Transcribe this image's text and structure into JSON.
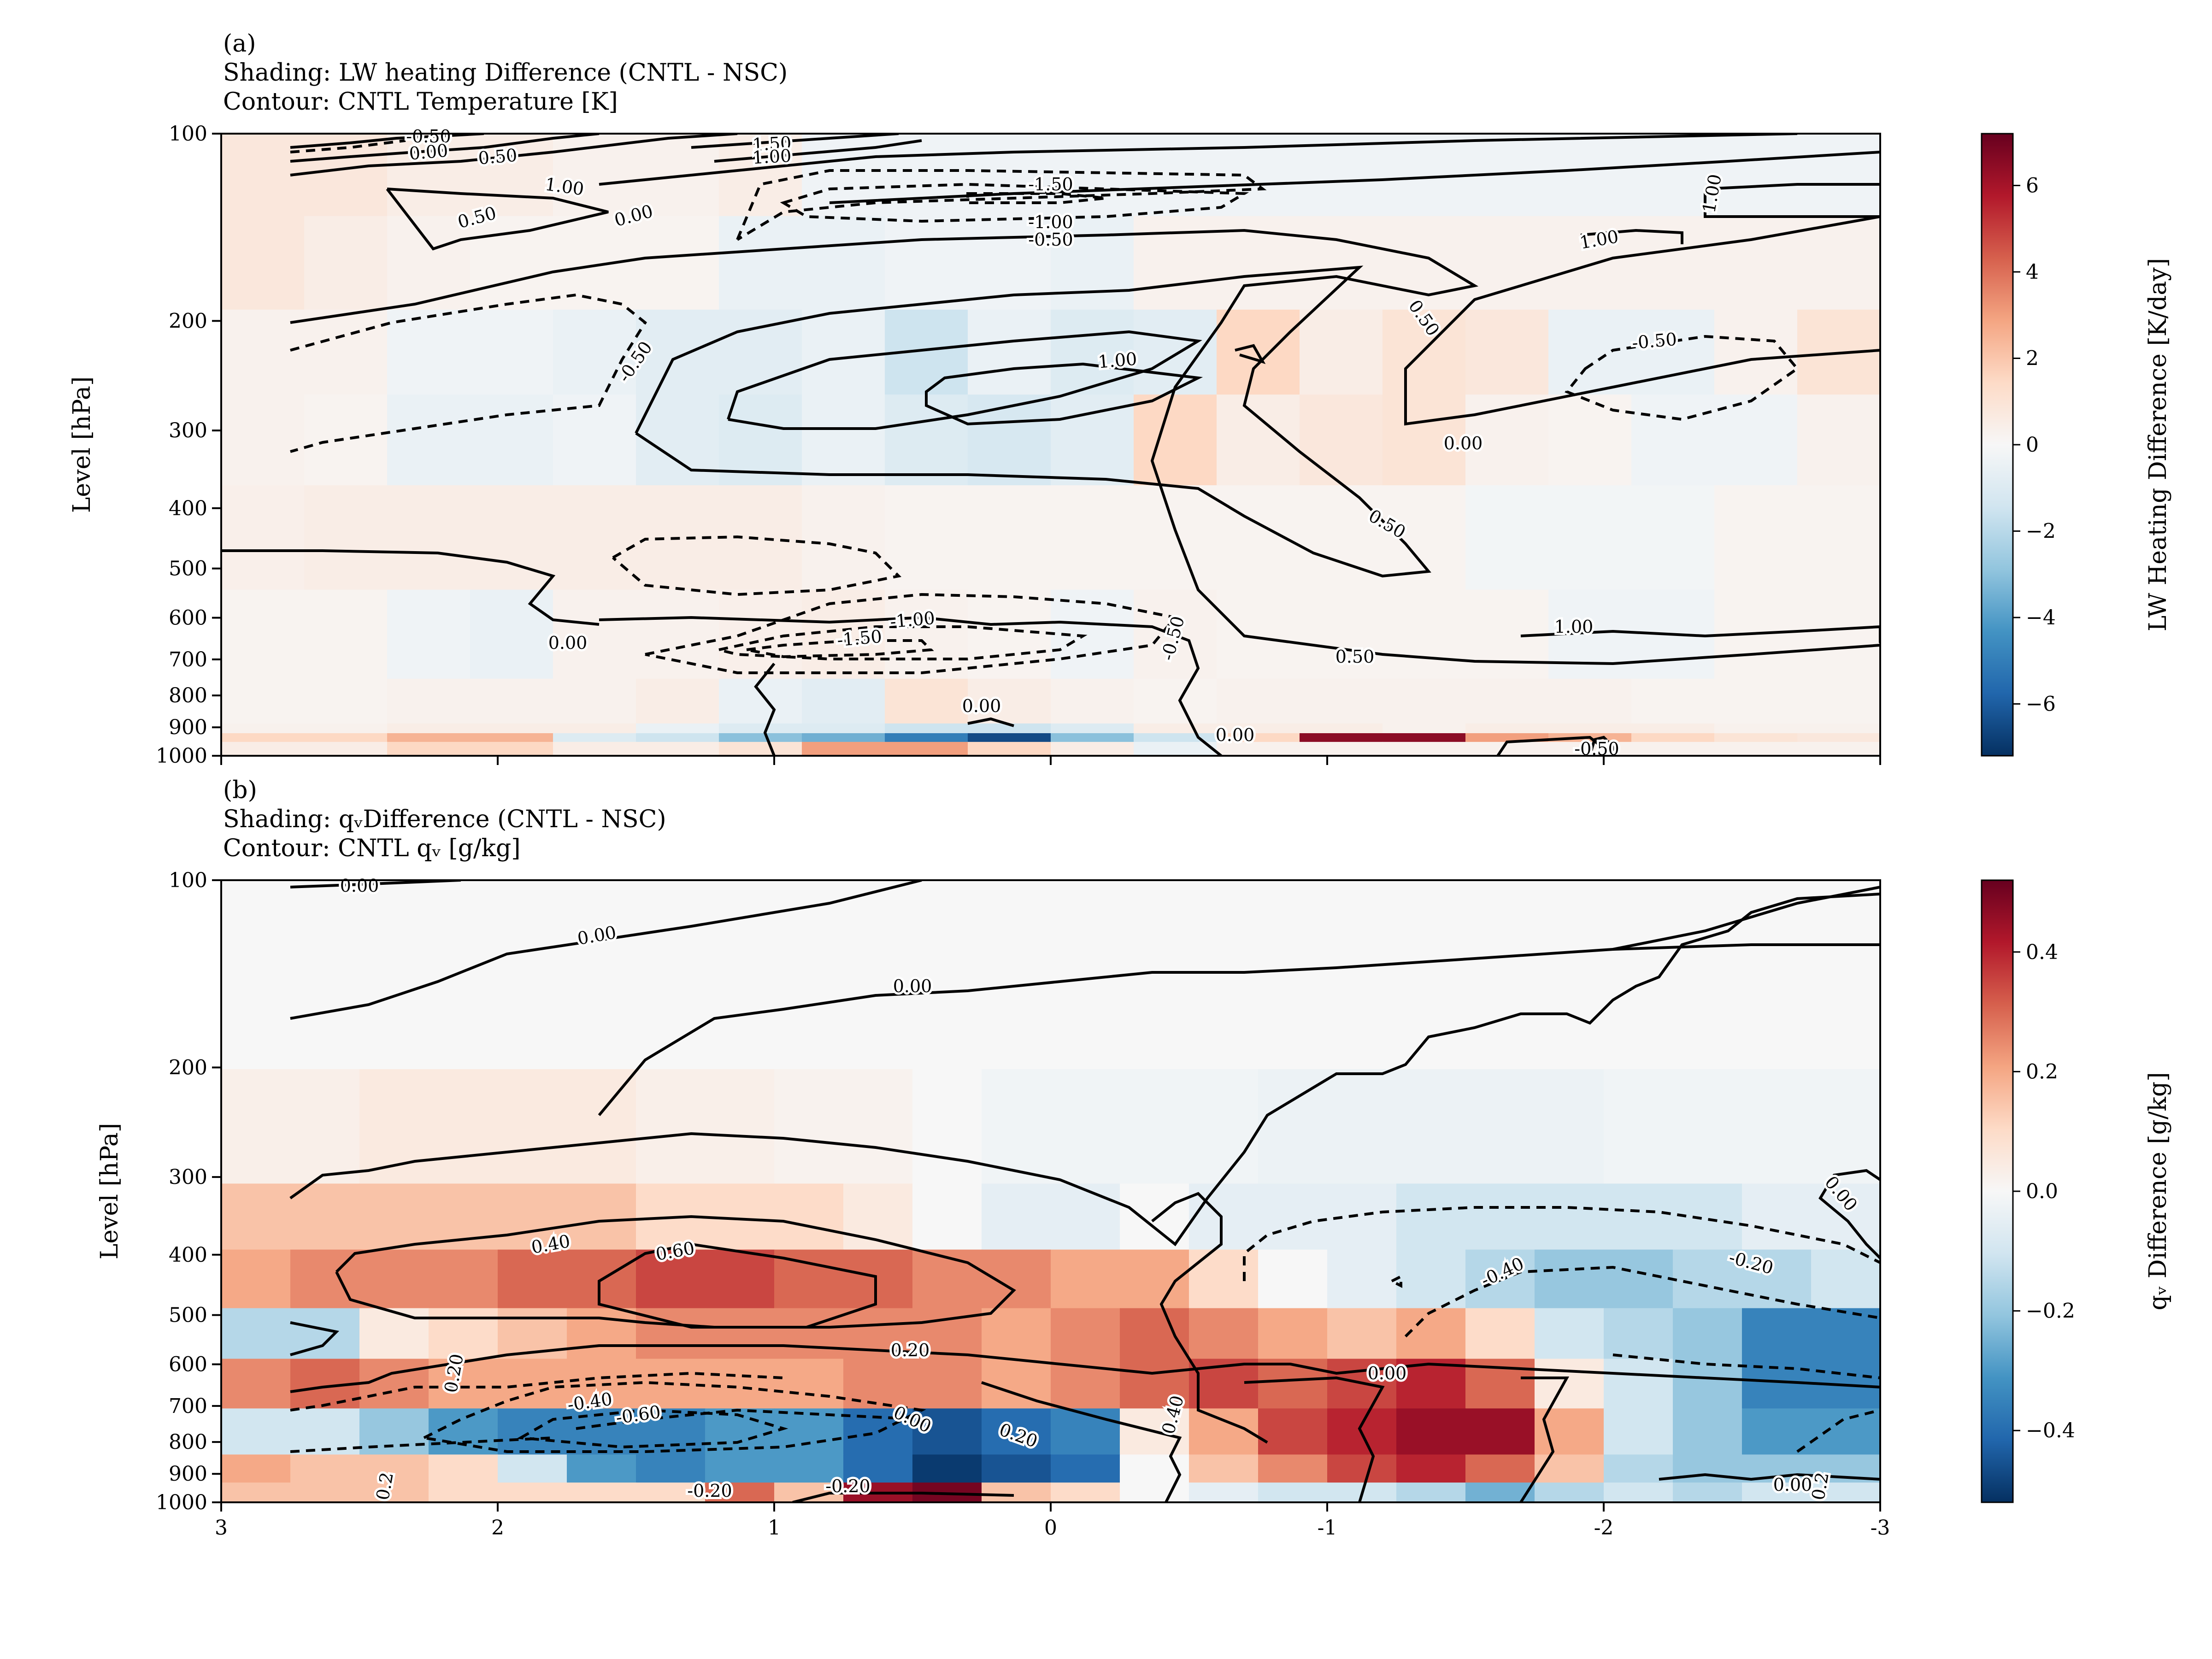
{
  "chart_data": [
    {
      "type": "heatmap",
      "panel_label": "(a)",
      "title_lines": [
        "(a)",
        "Shading: LW heating Difference (CNTL - NSC)",
        "Contour: CNTL Temperature [K]"
      ],
      "ylabel": "Level [hPa]",
      "y_scale": "log",
      "y_reversed": true,
      "ylim": [
        1000,
        100
      ],
      "y_ticks": [
        100,
        200,
        300,
        400,
        500,
        600,
        700,
        800,
        900,
        1000
      ],
      "x_reversed": true,
      "xlim": [
        3,
        -3
      ],
      "x_ticks_labeled": false,
      "colormap": "RdBu_r",
      "colorbar_label": "LW Heating Difference [K/day]",
      "colorbar_range": [
        -7.2,
        7.2
      ],
      "colorbar_ticks": [
        "6",
        "4",
        "2",
        "0",
        "−2",
        "−4",
        "−6"
      ],
      "colorbar_tick_values": [
        6,
        4,
        2,
        0,
        -2,
        -4,
        -6
      ],
      "shading_rows": [
        {
          "p": 935,
          "values": [
            1.5,
            1.5,
            2.5,
            2.5,
            -1.0,
            -1.5,
            -3.0,
            -3.5,
            -5.0,
            -6.5,
            -3.0,
            -1.5,
            1.5,
            6.5,
            6.5,
            3.0,
            2.5,
            1.5,
            1.0,
            0.8
          ]
        },
        {
          "p": 965,
          "values": [
            0.5,
            0.5,
            1.5,
            1.5,
            0.5,
            0.5,
            1.0,
            3.0,
            3.0,
            1.5,
            0.5,
            -0.5,
            0.3,
            0.3,
            0.3,
            0.3,
            0.3,
            0.3,
            0.3,
            0.3
          ]
        },
        {
          "p": 905,
          "values": [
            0.3,
            0.3,
            0.5,
            0.5,
            0.5,
            -0.5,
            -1.0,
            -1.0,
            -1.5,
            -1.5,
            -1.0,
            0.5,
            0.5,
            0.5,
            0.3,
            0.5,
            0.5,
            0.5,
            0.3,
            0.3
          ]
        },
        {
          "p": 870,
          "values": [
            0.2,
            0.2,
            0.3,
            0.3,
            0.3,
            0.5,
            -0.5,
            -0.8,
            1.0,
            0.5,
            0.3,
            0.2,
            0.3,
            0.3,
            0.3,
            0.3,
            0.3,
            0.2,
            0.2,
            0.2
          ]
        },
        {
          "p": 650,
          "values": [
            0.2,
            0.2,
            -0.3,
            -0.5,
            0.3,
            0.3,
            0.4,
            0.5,
            0.3,
            0.2,
            -0.3,
            0.3,
            0.2,
            0.2,
            0.2,
            0.2,
            -0.3,
            -0.3,
            0.2,
            0.2
          ]
        },
        {
          "p": 450,
          "values": [
            0.4,
            0.5,
            0.5,
            0.5,
            0.5,
            0.5,
            0.5,
            0.3,
            0.2,
            0.2,
            0.2,
            0.2,
            0.2,
            0.2,
            0.2,
            -0.2,
            -0.2,
            -0.2,
            0.2,
            0.2
          ]
        },
        {
          "p": 300,
          "values": [
            0.3,
            0.2,
            -0.5,
            -0.5,
            -0.3,
            -0.8,
            -1.0,
            -0.5,
            -1.0,
            -1.2,
            -0.8,
            1.5,
            0.5,
            0.8,
            1.0,
            0.3,
            0.2,
            -0.3,
            -0.3,
            0.3
          ]
        },
        {
          "p": 230,
          "values": [
            0.3,
            0.3,
            -0.3,
            -0.3,
            -0.5,
            -0.8,
            -0.8,
            -0.5,
            -1.5,
            -0.5,
            -1.0,
            -0.8,
            1.5,
            0.5,
            1.0,
            0.8,
            -0.5,
            -0.5,
            0.3,
            1.0
          ]
        },
        {
          "p": 160,
          "values": [
            0.8,
            0.5,
            0.3,
            0.2,
            0.2,
            0.2,
            -0.5,
            -0.5,
            -0.3,
            -0.3,
            -0.5,
            0.3,
            0.3,
            0.3,
            0.3,
            0.3,
            0.3,
            0.3,
            0.3,
            0.3
          ]
        },
        {
          "p": 115,
          "values": [
            0.8,
            0.8,
            0.5,
            0.5,
            0.3,
            0.3,
            0.5,
            -0.3,
            -0.3,
            -0.3,
            -0.3,
            -0.3,
            -0.3,
            -0.3,
            -0.3,
            -0.3,
            -0.3,
            -0.3,
            -0.3,
            -0.3
          ]
        }
      ],
      "contour_labels": [
        "-0.50",
        "0.00",
        "0.50",
        "1.00",
        "1.50",
        "1.00",
        "0.50",
        "0.00",
        "-1.50",
        "-1.00",
        "-0.50",
        "1.00",
        "1.00",
        "0.50",
        "-0.50",
        "-0.50",
        "1.00",
        "0.00",
        "0.50",
        "0.00",
        "-1.00",
        "-1.50",
        "-0.50",
        "0.50",
        "1.00",
        "0.00",
        "0.00",
        "-0.50"
      ]
    },
    {
      "type": "heatmap",
      "panel_label": "(b)",
      "title_lines": [
        "(b)",
        "Shading: qᵥDifference (CNTL - NSC)",
        "Contour: CNTL qᵥ [g/kg]"
      ],
      "ylabel": "Level [hPa]",
      "y_scale": "log",
      "y_reversed": true,
      "ylim": [
        1000,
        100
      ],
      "y_ticks": [
        100,
        200,
        300,
        400,
        500,
        600,
        700,
        800,
        900,
        1000
      ],
      "x_reversed": true,
      "xlim": [
        3,
        -3
      ],
      "x_ticks": [
        "3",
        "2",
        "1",
        "0",
        "-1",
        "-2",
        "-3"
      ],
      "x_tick_values": [
        3,
        2,
        1,
        0,
        -1,
        -2,
        -3
      ],
      "colormap": "RdBu_r",
      "colorbar_label": "qᵥ Difference [g/kg]",
      "colorbar_range": [
        -0.52,
        0.52
      ],
      "colorbar_ticks": [
        "0.4",
        "0.2",
        "0.0",
        "−0.2",
        "−0.4"
      ],
      "colorbar_tick_values": [
        0.4,
        0.2,
        0.0,
        -0.2,
        -0.4
      ],
      "shading_rows": [
        {
          "p": 960,
          "values": [
            0.15,
            0.15,
            0.15,
            0.1,
            0.1,
            0.1,
            0.1,
            0.3,
            0.15,
            0.45,
            0.5,
            0.15,
            0.1,
            0.0,
            -0.05,
            -0.1,
            -0.1,
            -0.15,
            -0.25,
            -0.15,
            -0.1,
            -0.15,
            -0.1,
            -0.1
          ]
        },
        {
          "p": 900,
          "values": [
            0.2,
            0.15,
            0.15,
            0.1,
            -0.1,
            -0.3,
            -0.35,
            -0.3,
            -0.3,
            -0.4,
            -0.5,
            -0.45,
            -0.4,
            0.0,
            0.15,
            0.25,
            0.35,
            0.4,
            0.3,
            0.15,
            -0.15,
            -0.2,
            -0.2,
            -0.2
          ]
        },
        {
          "p": 780,
          "values": [
            -0.1,
            -0.1,
            -0.2,
            -0.3,
            -0.35,
            -0.35,
            -0.35,
            -0.3,
            -0.3,
            -0.4,
            -0.45,
            -0.4,
            -0.35,
            0.05,
            0.2,
            0.35,
            0.4,
            0.45,
            0.45,
            0.2,
            -0.1,
            -0.2,
            -0.3,
            -0.3
          ]
        },
        {
          "p": 640,
          "values": [
            0.25,
            0.3,
            0.25,
            0.2,
            0.2,
            0.2,
            0.2,
            0.2,
            0.2,
            0.25,
            0.25,
            0.2,
            0.25,
            0.3,
            0.35,
            0.3,
            0.35,
            0.4,
            0.3,
            0.05,
            -0.1,
            -0.2,
            -0.35,
            -0.35
          ]
        },
        {
          "p": 540,
          "values": [
            -0.15,
            -0.15,
            0.05,
            0.1,
            0.15,
            0.2,
            0.25,
            0.25,
            0.25,
            0.25,
            0.25,
            0.2,
            0.25,
            0.3,
            0.25,
            0.2,
            0.15,
            0.2,
            0.1,
            -0.1,
            -0.15,
            -0.2,
            -0.35,
            -0.35
          ]
        },
        {
          "p": 440,
          "values": [
            0.2,
            0.25,
            0.25,
            0.25,
            0.3,
            0.3,
            0.35,
            0.35,
            0.3,
            0.3,
            0.25,
            0.25,
            0.2,
            0.2,
            0.1,
            0.0,
            -0.05,
            -0.1,
            -0.15,
            -0.2,
            -0.2,
            -0.15,
            -0.15,
            -0.1
          ]
        },
        {
          "p": 350,
          "values": [
            0.15,
            0.15,
            0.15,
            0.15,
            0.15,
            0.15,
            0.1,
            0.1,
            0.1,
            0.05,
            0.0,
            -0.05,
            -0.05,
            0.0,
            -0.05,
            -0.05,
            -0.05,
            -0.1,
            -0.1,
            -0.1,
            -0.1,
            -0.1,
            -0.05,
            -0.05
          ]
        },
        {
          "p": 270,
          "values": [
            0.03,
            0.03,
            0.05,
            0.05,
            0.05,
            0.05,
            0.03,
            0.03,
            0.02,
            0.02,
            0.0,
            -0.02,
            -0.02,
            -0.02,
            -0.02,
            -0.03,
            -0.03,
            -0.03,
            -0.03,
            -0.03,
            -0.02,
            -0.02,
            -0.02,
            -0.02
          ]
        },
        {
          "p": 150,
          "values": [
            0.0,
            0.0,
            0.0,
            0.0,
            0.0,
            0.0,
            0.0,
            0.0,
            0.0,
            0.0,
            0.0,
            0.0,
            0.0,
            0.0,
            0.0,
            0.0,
            0.0,
            0.0,
            0.0,
            0.0,
            0.0,
            0.0,
            0.0,
            0.0
          ]
        }
      ],
      "contour_labels": [
        "0.00",
        "0.00",
        "0.00",
        "0.40",
        "0.60",
        "0.20",
        "-0.40",
        "-0.60",
        "0.20",
        "0.00",
        "0.20",
        "0.40",
        "0.00",
        "-0.20",
        "-0.20",
        "-0.40",
        "-0.20",
        "0.00",
        "0.00",
        "0.2",
        "0.2"
      ]
    }
  ]
}
